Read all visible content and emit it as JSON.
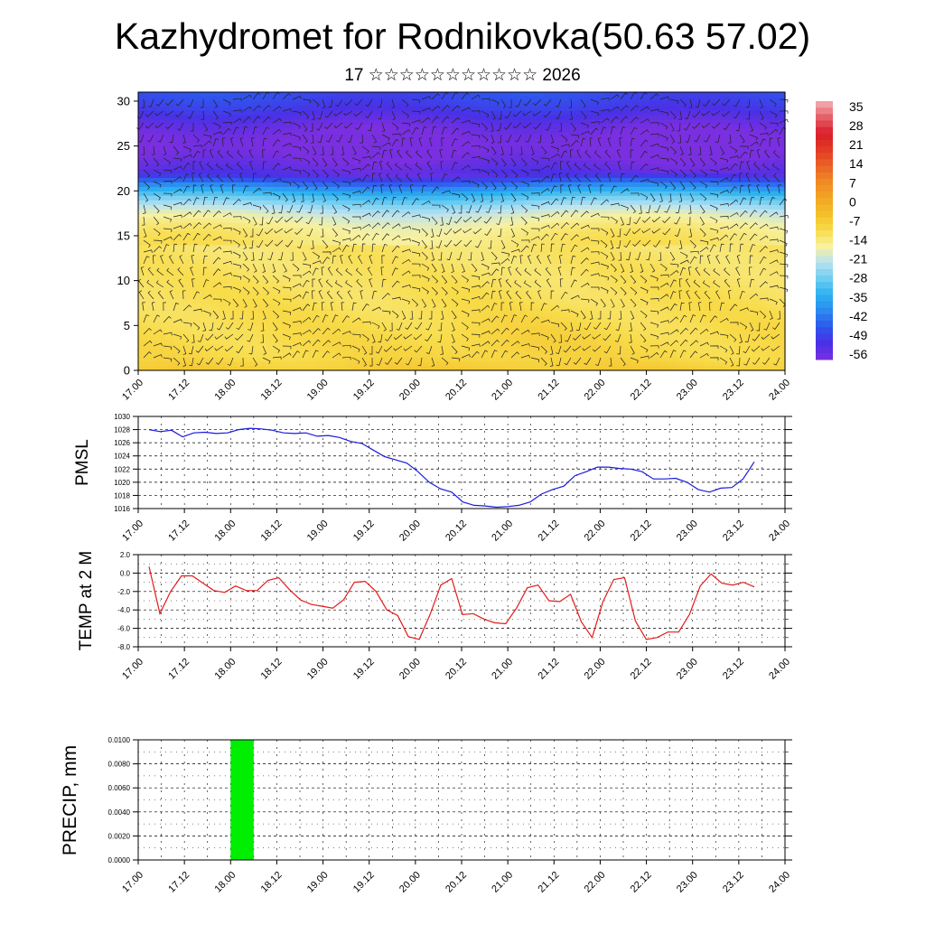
{
  "title": "Kazhydromet for Rodnikovka(50.63 57.02)",
  "subtitle": "17 ☆☆☆☆☆☆☆☆☆☆☆ 2026",
  "time_labels": [
    "17.00",
    "17.12",
    "18.00",
    "18.12",
    "19.00",
    "19.12",
    "20.00",
    "20.12",
    "21.00",
    "21.12",
    "22.00",
    "22.12",
    "23.00",
    "23.12",
    "24.00"
  ],
  "chart_data": [
    {
      "type": "heatmap",
      "description": "time-height cross section of temperature with wind barbs",
      "x_ticks": [
        "17.00",
        "17.12",
        "18.00",
        "18.12",
        "19.00",
        "19.12",
        "20.00",
        "20.12",
        "21.00",
        "21.12",
        "22.00",
        "22.12",
        "23.00",
        "23.12",
        "24.00"
      ],
      "y_ticks": [
        0,
        5,
        10,
        15,
        20,
        25,
        30
      ],
      "ylim": [
        0,
        31
      ],
      "colorbar_labels": [
        "35",
        "28",
        "21",
        "14",
        "7",
        "0",
        "-7",
        "-14",
        "-21",
        "-28",
        "-35",
        "-42",
        "-49",
        "-56"
      ],
      "colormap": [
        "#7a2fe0",
        "#4a30e6",
        "#2f55ee",
        "#2b8af0",
        "#2cb2f0",
        "#6fcdf2",
        "#b8e2f2",
        "#f7f1a0",
        "#f8dc4a",
        "#f4c02a",
        "#f3a524",
        "#f08a24",
        "#ea6226",
        "#e23a25",
        "#d91e2a",
        "#e6606a",
        "#f4b0b4"
      ]
    },
    {
      "type": "line",
      "ylabel": "PMSL",
      "ylim": [
        1016,
        1030
      ],
      "y_ticks": [
        "1016",
        "1018",
        "1020",
        "1022",
        "1024",
        "1026",
        "1028",
        "1030"
      ],
      "x_ticks": [
        "17.00",
        "17.12",
        "18.00",
        "18.12",
        "19.00",
        "19.12",
        "20.00",
        "20.12",
        "21.00",
        "21.12",
        "22.00",
        "22.12",
        "23.00",
        "23.12",
        "24.00"
      ],
      "color": "#1a1adc",
      "series": [
        {
          "values": [
            1028.0,
            1027.7,
            1027.9,
            1026.9,
            1027.5,
            1027.6,
            1027.4,
            1027.5,
            1028.0,
            1028.2,
            1028.1,
            1027.9,
            1027.5,
            1027.4,
            1027.5,
            1027.0,
            1027.1,
            1026.8,
            1026.2,
            1025.9,
            1024.9,
            1023.9,
            1023.4,
            1022.9,
            1021.6,
            1020.0,
            1019.0,
            1018.5,
            1017.0,
            1016.5,
            1016.4,
            1016.2,
            1016.3,
            1016.5,
            1017.0,
            1018.2,
            1018.9,
            1019.4,
            1021.0,
            1021.6,
            1022.3,
            1022.3,
            1022.1,
            1022.0,
            1021.6,
            1020.5,
            1020.5,
            1020.6,
            1020.0,
            1018.9,
            1018.5,
            1019.1,
            1019.2,
            1020.5,
            1023.1
          ]
        }
      ]
    },
    {
      "type": "line",
      "ylabel": "TEMP at 2 M",
      "ylim": [
        -8,
        2
      ],
      "y_ticks": [
        "-8.0",
        "-6.0",
        "-4.0",
        "-2.0",
        "0.0",
        "2.0"
      ],
      "x_ticks": [
        "17.00",
        "17.12",
        "18.00",
        "18.12",
        "19.00",
        "19.12",
        "20.00",
        "20.12",
        "21.00",
        "21.12",
        "22.00",
        "22.12",
        "23.00",
        "23.12",
        "24.00"
      ],
      "color": "#e21b1b",
      "series": [
        {
          "values": [
            0.7,
            -4.4,
            -2.0,
            -0.3,
            -0.3,
            -1.1,
            -1.9,
            -2.1,
            -1.4,
            -1.9,
            -1.9,
            -0.8,
            -0.5,
            -1.8,
            -2.9,
            -3.4,
            -3.6,
            -3.8,
            -2.9,
            -1.0,
            -0.9,
            -2.0,
            -4.0,
            -4.6,
            -6.9,
            -7.2,
            -4.5,
            -1.3,
            -0.6,
            -4.5,
            -4.4,
            -5.0,
            -5.4,
            -5.5,
            -3.8,
            -1.6,
            -1.3,
            -3.0,
            -3.1,
            -2.3,
            -5.3,
            -7.0,
            -3.1,
            -0.7,
            -0.5,
            -5.2,
            -7.2,
            -7.0,
            -6.4,
            -6.4,
            -4.5,
            -1.4,
            -0.1,
            -1.1,
            -1.3,
            -1.0,
            -1.5
          ]
        }
      ]
    },
    {
      "type": "bar",
      "ylabel": "PRECIP, mm",
      "ylim": [
        0,
        0.01
      ],
      "y_ticks": [
        "0.0000",
        "0.0020",
        "0.0040",
        "0.0060",
        "0.0080",
        "0.0100"
      ],
      "x_ticks": [
        "17.00",
        "17.12",
        "18.00",
        "18.12",
        "19.00",
        "19.12",
        "20.00",
        "20.12",
        "21.00",
        "21.12",
        "22.00",
        "22.12",
        "23.00",
        "23.12",
        "24.00"
      ],
      "color": "#00ee00",
      "bars": [
        {
          "start": "18.00",
          "hours": 6,
          "value": 0.01
        }
      ]
    }
  ]
}
